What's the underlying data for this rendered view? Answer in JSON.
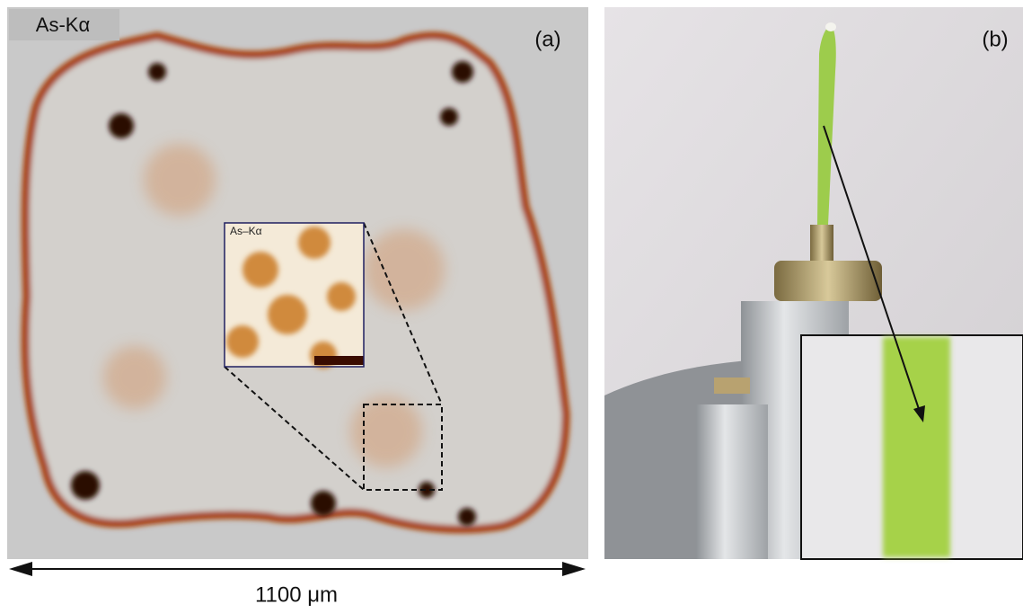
{
  "panel_a": {
    "map_label": "As-Kα",
    "panel_label": "(a)",
    "inset_label": "As–Kα",
    "scale_label": "1100 μm"
  },
  "panel_b": {
    "panel_label": "(b)"
  }
}
